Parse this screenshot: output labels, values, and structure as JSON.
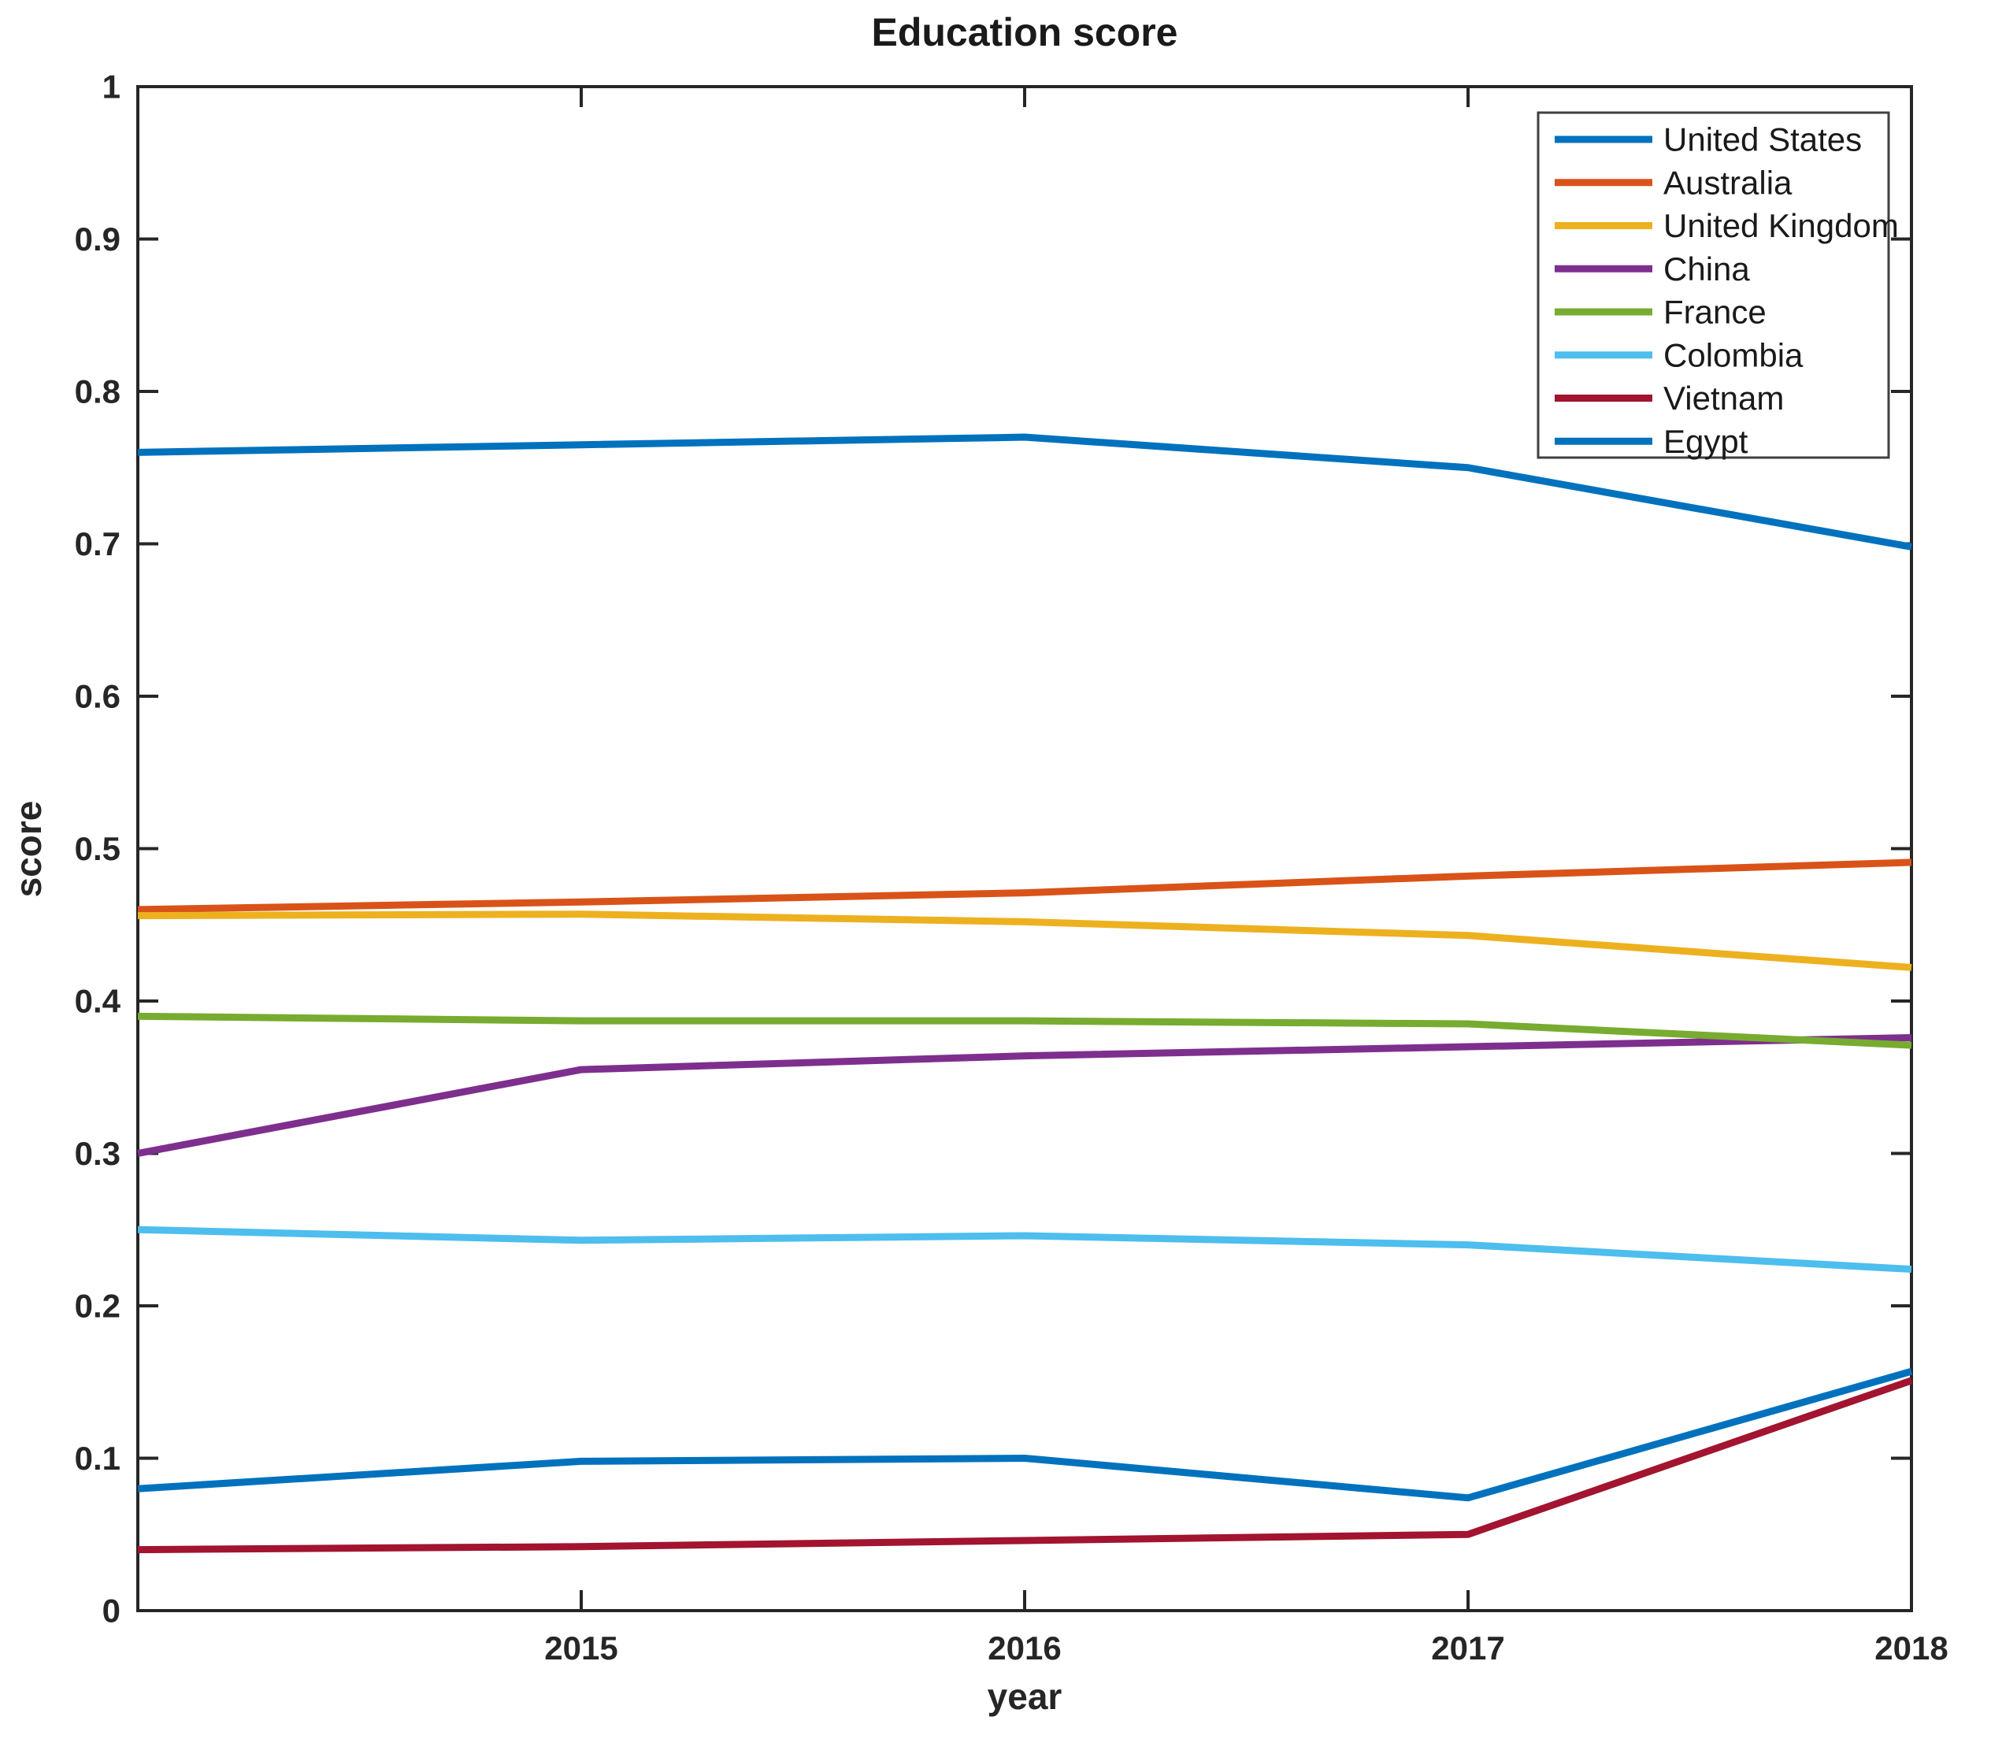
{
  "figure": {
    "title": "Education score",
    "xlabel": "year",
    "ylabel": "score"
  },
  "style": {
    "background": "#ffffff",
    "axis_color": "#262626",
    "text_color": "#1a1a1a",
    "legend_border_color": "#404040",
    "legend_background": "#ffffff"
  },
  "chart_data": {
    "type": "line",
    "title": "Education score",
    "xlabel": "year",
    "ylabel": "score",
    "x": [
      2014,
      2015,
      2016,
      2017,
      2018
    ],
    "xlim": [
      2014,
      2018
    ],
    "ylim": [
      0,
      1
    ],
    "x_ticks": [
      2015,
      2016,
      2017,
      2018
    ],
    "x_tick_labels": [
      "2015",
      "2016",
      "2017",
      "2018"
    ],
    "y_ticks": [
      0,
      0.1,
      0.2,
      0.3,
      0.4,
      0.5,
      0.6,
      0.7,
      0.8,
      0.9,
      1
    ],
    "y_tick_labels": [
      "0",
      "0.1",
      "0.2",
      "0.3",
      "0.4",
      "0.5",
      "0.6",
      "0.7",
      "0.8",
      "0.9",
      "1"
    ],
    "grid": false,
    "box": true,
    "tick_direction": "in",
    "line_width": 9,
    "legend_position": "top-right",
    "series": [
      {
        "name": "United States",
        "color": "#0072BD",
        "values": [
          0.76,
          0.765,
          0.77,
          0.75,
          0.698
        ]
      },
      {
        "name": "Australia",
        "color": "#D95319",
        "values": [
          0.46,
          0.465,
          0.471,
          0.482,
          0.491
        ]
      },
      {
        "name": "United Kingdom",
        "color": "#EDB120",
        "values": [
          0.456,
          0.457,
          0.452,
          0.443,
          0.422
        ]
      },
      {
        "name": "China",
        "color": "#7E2F8E",
        "values": [
          0.3,
          0.355,
          0.364,
          0.37,
          0.376
        ]
      },
      {
        "name": "France",
        "color": "#77AC30",
        "values": [
          0.39,
          0.387,
          0.387,
          0.385,
          0.371
        ]
      },
      {
        "name": "Colombia",
        "color": "#4DBEEE",
        "values": [
          0.25,
          0.243,
          0.246,
          0.24,
          0.224
        ]
      },
      {
        "name": "Vietnam",
        "color": "#A2142F",
        "values": [
          0.04,
          0.042,
          0.046,
          0.05,
          0.151
        ]
      },
      {
        "name": "Egypt",
        "color": "#0072BD",
        "values": [
          0.08,
          0.098,
          0.1,
          0.074,
          0.157
        ]
      }
    ]
  }
}
